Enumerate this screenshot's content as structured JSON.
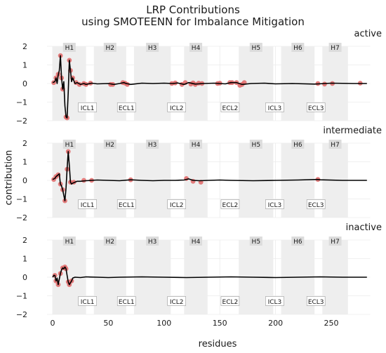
{
  "title": [
    "LRP Contributions",
    "using SMOTEENN for Imbalance Mitigation"
  ],
  "chart_data": {
    "type": "line",
    "xlabel": "residues",
    "ylabel": "contribution",
    "xlim": [
      -5,
      285
    ],
    "ylim": [
      -2,
      2
    ],
    "x_ticks": [
      0,
      50,
      100,
      150,
      200,
      250
    ],
    "y_ticks": [
      -2,
      -1,
      0,
      1,
      2
    ],
    "grid": true,
    "region_shading": [
      {
        "label": "H1",
        "start": 0,
        "end": 30
      },
      {
        "label": "H2",
        "start": 37,
        "end": 66
      },
      {
        "label": "H3",
        "start": 73,
        "end": 106
      },
      {
        "label": "H4",
        "start": 118,
        "end": 139
      },
      {
        "label": "H5",
        "start": 167,
        "end": 198
      },
      {
        "label": "H6",
        "start": 205,
        "end": 235
      },
      {
        "label": "H7",
        "start": 242,
        "end": 265
      }
    ],
    "loop_labels": [
      {
        "label": "ICL1",
        "x": 30
      },
      {
        "label": "ECL1",
        "x": 65
      },
      {
        "label": "ICL2",
        "x": 110
      },
      {
        "label": "ECL2",
        "x": 158
      },
      {
        "label": "ICL3",
        "x": 198
      },
      {
        "label": "ECL3",
        "x": 235
      }
    ],
    "panels": [
      {
        "name": "active",
        "line_points": [
          [
            0,
            0.05
          ],
          [
            2,
            0.1
          ],
          [
            3,
            0.3
          ],
          [
            4,
            0.0
          ],
          [
            5,
            0.45
          ],
          [
            6,
            0.7
          ],
          [
            7,
            1.5
          ],
          [
            8,
            0.3
          ],
          [
            9,
            -0.3
          ],
          [
            10,
            0.1
          ],
          [
            11,
            -1.2
          ],
          [
            12,
            -1.8
          ],
          [
            13,
            -1.85
          ],
          [
            14,
            -0.5
          ],
          [
            15,
            1.25
          ],
          [
            16,
            0.7
          ],
          [
            17,
            0.1
          ],
          [
            18,
            0.3
          ],
          [
            20,
            0.0
          ],
          [
            22,
            0.05
          ],
          [
            25,
            -0.05
          ],
          [
            28,
            0.0
          ],
          [
            30,
            -0.05
          ],
          [
            35,
            0.02
          ],
          [
            40,
            -0.02
          ],
          [
            50,
            0.0
          ],
          [
            55,
            -0.05
          ],
          [
            60,
            0.0
          ],
          [
            64,
            0.05
          ],
          [
            66,
            0.0
          ],
          [
            70,
            -0.05
          ],
          [
            80,
            0.02
          ],
          [
            90,
            0.0
          ],
          [
            100,
            0.02
          ],
          [
            108,
            0.0
          ],
          [
            112,
            0.03
          ],
          [
            118,
            -0.05
          ],
          [
            122,
            0.05
          ],
          [
            128,
            -0.03
          ],
          [
            135,
            0.0
          ],
          [
            145,
            0.02
          ],
          [
            155,
            -0.02
          ],
          [
            160,
            0.05
          ],
          [
            165,
            0.05
          ],
          [
            170,
            -0.05
          ],
          [
            178,
            0.0
          ],
          [
            190,
            0.02
          ],
          [
            200,
            -0.02
          ],
          [
            215,
            0.0
          ],
          [
            235,
            -0.03
          ],
          [
            250,
            0.02
          ],
          [
            270,
            0.0
          ],
          [
            282,
            0.0
          ]
        ],
        "highlights": [
          [
            1,
            0.05
          ],
          [
            3,
            0.3
          ],
          [
            5,
            0.5
          ],
          [
            7,
            1.5
          ],
          [
            8,
            0.3
          ],
          [
            9,
            -0.3
          ],
          [
            12,
            -1.8
          ],
          [
            13,
            -1.85
          ],
          [
            15,
            1.25
          ],
          [
            16,
            0.7
          ],
          [
            18,
            0.3
          ],
          [
            21,
            0.05
          ],
          [
            24,
            -0.05
          ],
          [
            28,
            0.0
          ],
          [
            30,
            -0.05
          ],
          [
            34,
            0.02
          ],
          [
            52,
            -0.05
          ],
          [
            54,
            -0.05
          ],
          [
            63,
            0.05
          ],
          [
            65,
            0.02
          ],
          [
            67,
            -0.05
          ],
          [
            107,
            0.0
          ],
          [
            110,
            0.03
          ],
          [
            116,
            -0.05
          ],
          [
            119,
            0.05
          ],
          [
            124,
            -0.03
          ],
          [
            126,
            0.03
          ],
          [
            128,
            -0.05
          ],
          [
            131,
            0.02
          ],
          [
            134,
            0.0
          ],
          [
            148,
            0.0
          ],
          [
            150,
            0.02
          ],
          [
            159,
            0.05
          ],
          [
            161,
            0.05
          ],
          [
            165,
            0.05
          ],
          [
            168,
            -0.1
          ],
          [
            170,
            -0.05
          ],
          [
            172,
            0.05
          ],
          [
            238,
            0.0
          ],
          [
            244,
            -0.03
          ],
          [
            251,
            0.0
          ],
          [
            276,
            0.02
          ]
        ]
      },
      {
        "name": "intermediate",
        "line_points": [
          [
            0,
            0.05
          ],
          [
            2,
            0.1
          ],
          [
            3,
            0.2
          ],
          [
            4,
            0.25
          ],
          [
            5,
            0.3
          ],
          [
            6,
            0.35
          ],
          [
            7,
            -0.2
          ],
          [
            8,
            -0.3
          ],
          [
            9,
            -0.5
          ],
          [
            10,
            -0.8
          ],
          [
            11,
            -1.1
          ],
          [
            12,
            -0.4
          ],
          [
            13,
            0.6
          ],
          [
            14,
            1.55
          ],
          [
            15,
            0.8
          ],
          [
            16,
            -0.1
          ],
          [
            17,
            -0.2
          ],
          [
            18,
            -0.15
          ],
          [
            20,
            -0.1
          ],
          [
            22,
            -0.05
          ],
          [
            25,
            -0.05
          ],
          [
            30,
            -0.02
          ],
          [
            35,
            0.0
          ],
          [
            40,
            0.02
          ],
          [
            50,
            0.0
          ],
          [
            60,
            -0.02
          ],
          [
            70,
            0.03
          ],
          [
            80,
            0.0
          ],
          [
            90,
            -0.02
          ],
          [
            100,
            0.0
          ],
          [
            110,
            0.0
          ],
          [
            118,
            0.02
          ],
          [
            122,
            0.08
          ],
          [
            126,
            0.0
          ],
          [
            132,
            -0.02
          ],
          [
            140,
            0.0
          ],
          [
            150,
            0.02
          ],
          [
            160,
            0.0
          ],
          [
            180,
            -0.02
          ],
          [
            200,
            0.0
          ],
          [
            220,
            0.02
          ],
          [
            238,
            0.05
          ],
          [
            240,
            0.03
          ],
          [
            260,
            0.0
          ],
          [
            282,
            0.0
          ]
        ],
        "highlights": [
          [
            1,
            0.05
          ],
          [
            3,
            0.2
          ],
          [
            5,
            0.3
          ],
          [
            7,
            -0.2
          ],
          [
            9,
            -0.5
          ],
          [
            11,
            -1.1
          ],
          [
            13,
            0.6
          ],
          [
            14,
            1.55
          ],
          [
            16,
            -0.1
          ],
          [
            19,
            -0.1
          ],
          [
            28,
            0.0
          ],
          [
            35,
            0.0
          ],
          [
            70,
            0.03
          ],
          [
            120,
            0.1
          ],
          [
            126,
            -0.05
          ],
          [
            133,
            -0.1
          ],
          [
            238,
            0.05
          ]
        ]
      },
      {
        "name": "inactive",
        "line_points": [
          [
            0,
            0.0
          ],
          [
            1,
            0.1
          ],
          [
            2,
            0.1
          ],
          [
            3,
            -0.2
          ],
          [
            4,
            -0.05
          ],
          [
            5,
            -0.4
          ],
          [
            6,
            -0.1
          ],
          [
            7,
            0.2
          ],
          [
            8,
            0.4
          ],
          [
            9,
            0.5
          ],
          [
            10,
            0.45
          ],
          [
            11,
            0.55
          ],
          [
            12,
            0.45
          ],
          [
            13,
            0.1
          ],
          [
            14,
            -0.25
          ],
          [
            15,
            -0.4
          ],
          [
            16,
            -0.3
          ],
          [
            17,
            -0.2
          ],
          [
            18,
            -0.05
          ],
          [
            20,
            0.0
          ],
          [
            25,
            -0.02
          ],
          [
            30,
            0.02
          ],
          [
            40,
            0.0
          ],
          [
            50,
            -0.02
          ],
          [
            60,
            0.0
          ],
          [
            80,
            0.02
          ],
          [
            100,
            0.0
          ],
          [
            120,
            -0.02
          ],
          [
            140,
            0.0
          ],
          [
            160,
            0.02
          ],
          [
            180,
            0.0
          ],
          [
            200,
            -0.02
          ],
          [
            220,
            0.0
          ],
          [
            240,
            0.02
          ],
          [
            260,
            0.0
          ],
          [
            282,
            0.0
          ]
        ],
        "highlights": [
          [
            2,
            0.1
          ],
          [
            3,
            -0.2
          ],
          [
            5,
            -0.4
          ],
          [
            7,
            0.2
          ],
          [
            9,
            0.5
          ],
          [
            11,
            0.55
          ],
          [
            12,
            0.45
          ],
          [
            14,
            -0.25
          ],
          [
            15,
            -0.4
          ],
          [
            17,
            -0.2
          ]
        ]
      }
    ],
    "colors": {
      "line": "#000000",
      "highlight": "#e06666",
      "region": "#eeeeee",
      "region_label_bg": "#dcdcdc",
      "grid": "#ebebeb"
    }
  }
}
